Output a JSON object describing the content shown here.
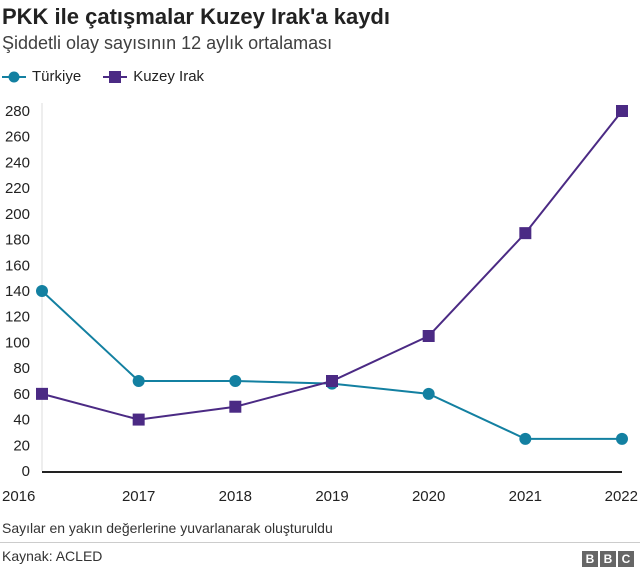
{
  "title": "PKK ile çatışmalar Kuzey Irak'a kaydı",
  "subtitle": "Şiddetli olay sayısının 12 aylık ortalaması",
  "note": "Sayılar en yakın değerlerine yuvarlanarak oluşturuldu",
  "source": "Kaynak: ACLED",
  "logo": [
    "B",
    "B",
    "C"
  ],
  "chart_data": {
    "type": "line",
    "x": [
      "2016",
      "2017",
      "2018",
      "2019",
      "2020",
      "2021",
      "2022"
    ],
    "ylim": [
      0,
      280
    ],
    "yticks": [
      0,
      20,
      40,
      60,
      80,
      100,
      120,
      140,
      160,
      180,
      200,
      220,
      240,
      260,
      280
    ],
    "grid": false,
    "legend": "top-left",
    "series": [
      {
        "name": "Türkiye",
        "color": "#1380A1",
        "marker": "circle",
        "values": [
          140,
          70,
          70,
          68,
          60,
          25,
          25
        ]
      },
      {
        "name": "Kuzey Irak",
        "color": "#4B2A84",
        "marker": "square",
        "values": [
          60,
          40,
          50,
          70,
          105,
          185,
          280
        ]
      }
    ]
  }
}
